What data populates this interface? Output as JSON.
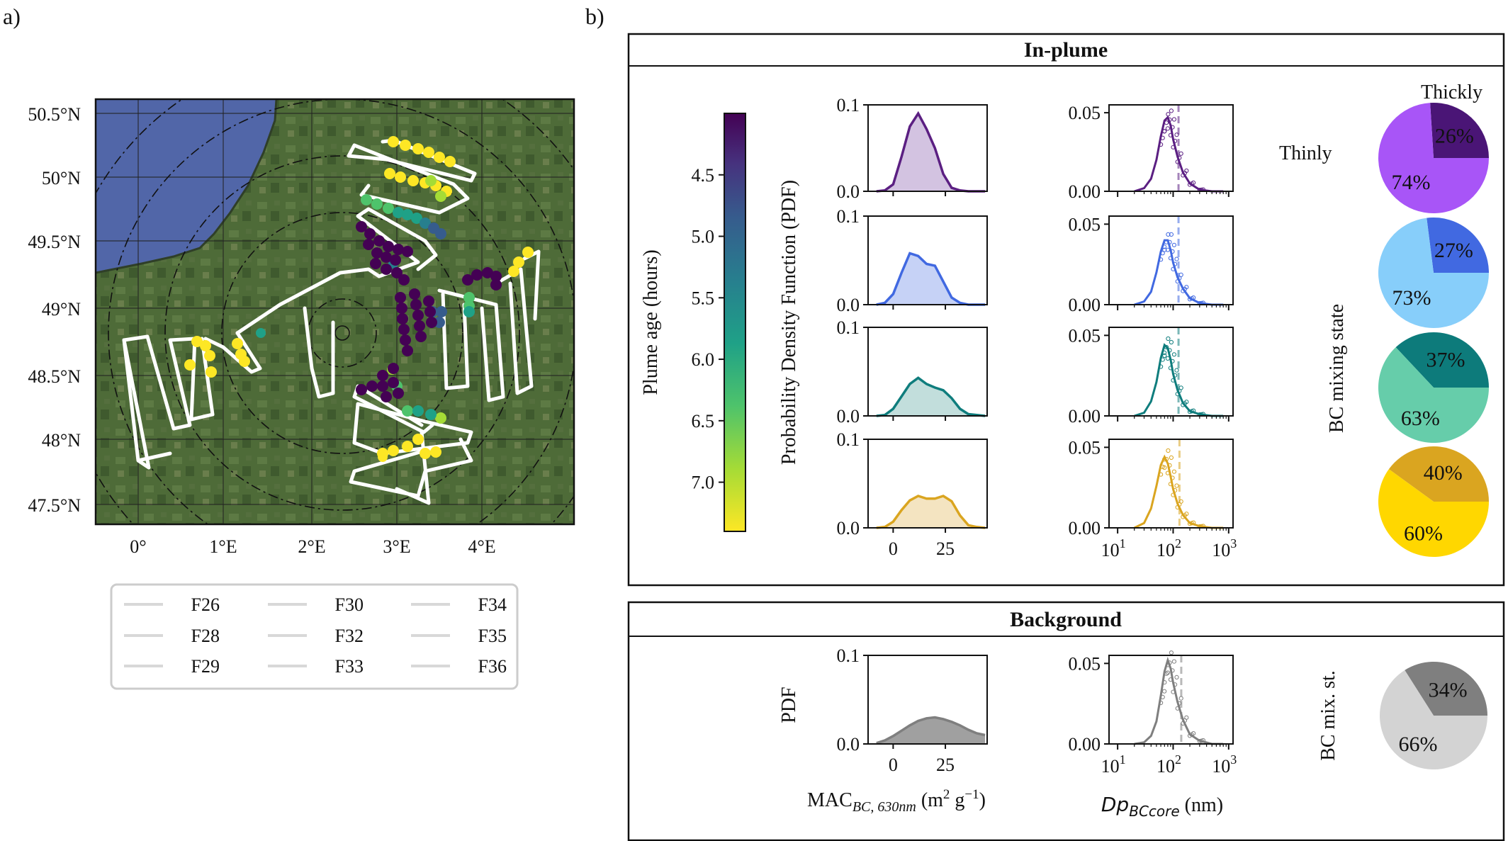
{
  "panel_a": {
    "label": "a)",
    "lat_ticks": [
      "50.5°N",
      "50°N",
      "49.5°N",
      "49°N",
      "48.5°N",
      "48°N",
      "47.5°N"
    ],
    "lon_ticks": [
      "0°",
      "1°E",
      "2°E",
      "3°E",
      "4°E"
    ],
    "legend": [
      "F26",
      "F30",
      "F34",
      "F28",
      "F32",
      "F35",
      "F29",
      "F33",
      "F36"
    ],
    "colors": {
      "sea": "#5166a8",
      "land": "#4f6a3a",
      "track": "#ffffff"
    }
  },
  "panel_b": {
    "label": "b)",
    "in_plume_title": "In-plume",
    "background_title": "Background",
    "colorbar_label": "Plume age (hours)",
    "pdf_ylabel": "Probability Density Function (PDF)",
    "bg_pdf_ylabel": "PDF",
    "mixing_label": "BC mixing state",
    "bg_mixing_label": "BC mix. st.",
    "thinly_label": "Thinly",
    "thickly_label": "Thickly",
    "mac_xlabel": "MAC",
    "mac_xlabel_sub": "BC, 630nm",
    "mac_xlabel_units": " (m",
    "mac_xlabel_sup1": "2",
    "mac_xlabel_mid": " g",
    "mac_xlabel_sup2": "−1",
    "mac_xlabel_end": ")",
    "dp_xlabel": "Dp",
    "dp_xlabel_sub": "BCcore",
    "dp_xlabel_units": " (nm)"
  },
  "chart_data": [
    {
      "type": "heatmap",
      "name": "colorbar",
      "title": "",
      "ylabel": "Plume age (hours)",
      "ticks": [
        "4.5",
        "5.0",
        "5.5",
        "6.0",
        "6.5",
        "7.0"
      ],
      "range": [
        4.0,
        7.4
      ]
    },
    {
      "type": "area",
      "name": "MAC PDF",
      "xlim": [
        -12,
        45
      ],
      "ylim": [
        0,
        0.1
      ],
      "x_ticks": [
        "0",
        "25"
      ],
      "y_ticks": [
        "0.0",
        "0.1"
      ],
      "x": [
        -8,
        -4,
        0,
        4,
        8,
        12,
        16,
        20,
        24,
        28,
        32,
        36,
        40,
        44
      ],
      "series": [
        {
          "color": "#5b1f82",
          "fill": "#d3c3e1",
          "values": [
            0,
            0.001,
            0.008,
            0.04,
            0.075,
            0.09,
            0.072,
            0.05,
            0.02,
            0.004,
            0.001,
            0,
            0,
            0
          ]
        },
        {
          "color": "#4169e1",
          "fill": "#c6d2f6",
          "values": [
            0,
            0.002,
            0.012,
            0.036,
            0.058,
            0.055,
            0.046,
            0.044,
            0.026,
            0.008,
            0.002,
            0,
            0,
            0
          ]
        },
        {
          "color": "#0f7d7d",
          "fill": "#c2dedc",
          "values": [
            0,
            0.001,
            0.008,
            0.022,
            0.036,
            0.043,
            0.036,
            0.032,
            0.029,
            0.02,
            0.008,
            0.002,
            0.001,
            0
          ]
        },
        {
          "color": "#daa520",
          "fill": "#f4e4c1",
          "values": [
            0,
            0.001,
            0.007,
            0.02,
            0.031,
            0.036,
            0.033,
            0.033,
            0.036,
            0.03,
            0.014,
            0.003,
            0.001,
            0
          ]
        },
        {
          "color": "#7f7f7f",
          "fill": "#a0a0a0",
          "values": [
            0.001,
            0.004,
            0.009,
            0.015,
            0.021,
            0.026,
            0.029,
            0.03,
            0.028,
            0.025,
            0.021,
            0.016,
            0.012,
            0.01
          ]
        }
      ]
    },
    {
      "type": "line",
      "name": "Dp BC core size distribution",
      "x_scale": "log",
      "xlim": [
        7,
        1200
      ],
      "ylim": [
        0,
        0.055
      ],
      "x_ticks": [
        "10",
        "10",
        "10"
      ],
      "x_tick_exponents": [
        "1",
        "2",
        "3"
      ],
      "y_ticks": [
        "0.00",
        "0.05"
      ],
      "x": [
        20,
        30,
        40,
        50,
        60,
        70,
        80,
        90,
        100,
        120,
        150,
        200,
        300,
        500,
        800
      ],
      "dashed_line_x": [
        125,
        125,
        125,
        130,
        140
      ],
      "series": [
        {
          "color": "#5b1f82",
          "values": [
            0,
            0.002,
            0.008,
            0.02,
            0.035,
            0.045,
            0.047,
            0.042,
            0.033,
            0.022,
            0.012,
            0.005,
            0.001,
            0,
            0
          ]
        },
        {
          "color": "#4169e1",
          "values": [
            0,
            0.002,
            0.008,
            0.02,
            0.033,
            0.04,
            0.04,
            0.034,
            0.026,
            0.017,
            0.01,
            0.004,
            0.001,
            0,
            0
          ]
        },
        {
          "color": "#0f7d7d",
          "values": [
            0,
            0.002,
            0.009,
            0.021,
            0.036,
            0.044,
            0.042,
            0.035,
            0.026,
            0.016,
            0.008,
            0.003,
            0.001,
            0,
            0
          ]
        },
        {
          "color": "#daa520",
          "values": [
            0,
            0.003,
            0.012,
            0.026,
            0.039,
            0.044,
            0.04,
            0.032,
            0.024,
            0.015,
            0.008,
            0.003,
            0.001,
            0,
            0
          ]
        },
        {
          "color": "#7f7f7f",
          "values": [
            0,
            0.001,
            0.005,
            0.014,
            0.03,
            0.045,
            0.052,
            0.047,
            0.038,
            0.026,
            0.015,
            0.006,
            0.002,
            0,
            0
          ]
        }
      ]
    },
    {
      "type": "pie",
      "name": "BC mixing state",
      "charts": [
        {
          "labels": [
            "Thickly",
            "Thinly"
          ],
          "values": [
            26,
            74
          ],
          "text": [
            "26%",
            "74%"
          ],
          "colors": [
            "#4a1576",
            "#a855f7"
          ]
        },
        {
          "labels": [
            "Thickly",
            "Thinly"
          ],
          "values": [
            27,
            73
          ],
          "text": [
            "27%",
            "73%"
          ],
          "colors": [
            "#4169e1",
            "#87cefa"
          ]
        },
        {
          "labels": [
            "Thickly",
            "Thinly"
          ],
          "values": [
            37,
            63
          ],
          "text": [
            "37%",
            "63%"
          ],
          "colors": [
            "#0d7b7b",
            "#66cdaa"
          ]
        },
        {
          "labels": [
            "Thickly",
            "Thinly"
          ],
          "values": [
            40,
            60
          ],
          "text": [
            "40%",
            "60%"
          ],
          "colors": [
            "#daa520",
            "#ffd700"
          ]
        },
        {
          "labels": [
            "Thickly",
            "Thinly"
          ],
          "values": [
            34,
            66
          ],
          "text": [
            "34%",
            "66%"
          ],
          "colors": [
            "#7f7f7f",
            "#d3d3d3"
          ]
        }
      ]
    }
  ]
}
